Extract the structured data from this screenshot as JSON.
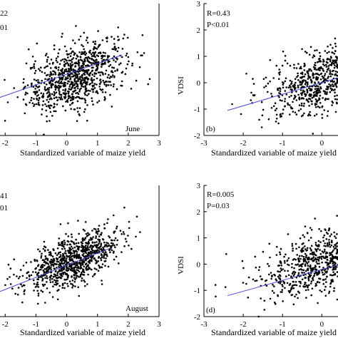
{
  "figure": {
    "description_free": true
  },
  "chart_data": [
    {
      "type": "scatter",
      "panel_id": "a",
      "panel_label": "",
      "month": "June",
      "stats": [
        "22",
        "01"
      ],
      "xlabel": "Standardized variable of maize yield",
      "ylabel": "",
      "xlim": [
        -2.4,
        3
      ],
      "ylim": [
        -2,
        3
      ],
      "xticks": [
        "-2",
        "-1",
        "0",
        "1",
        "2",
        "3"
      ],
      "yticks": [],
      "n_points": 900,
      "cloud": {
        "center": [
          0.3,
          0.25
        ],
        "spread": [
          0.8,
          0.6
        ]
      },
      "regression": {
        "x": [
          -2.4,
          1.8
        ],
        "y": [
          -0.65,
          1.05
        ]
      },
      "point_color": "#000000",
      "line_color": "#4a4ad8"
    },
    {
      "type": "scatter",
      "panel_id": "b",
      "panel_label": "(b)",
      "month": "",
      "stats": [
        "R=0.43",
        "P<0.01"
      ],
      "xlabel": "Standardized variable of maize yield",
      "ylabel": "VDSI",
      "xlim": [
        -3,
        1.7
      ],
      "ylim": [
        -2,
        3
      ],
      "xticks": [
        "-3",
        "-2",
        "-1",
        "0",
        "1"
      ],
      "yticks": [
        "-2",
        "-1",
        "0",
        "1",
        "2",
        "3"
      ],
      "n_points": 900,
      "cloud": {
        "center": [
          0.2,
          0.2
        ],
        "spread": [
          0.8,
          0.6
        ]
      },
      "regression": {
        "x": [
          -2.4,
          1.7
        ],
        "y": [
          -1.05,
          0.75
        ]
      },
      "point_color": "#000000",
      "line_color": "#4a4ad8"
    },
    {
      "type": "scatter",
      "panel_id": "c",
      "panel_label": "",
      "month": "August",
      "stats": [
        "41",
        "01"
      ],
      "xlabel": "Standardized variable of maize yield",
      "ylabel": "",
      "xlim": [
        -2.4,
        3
      ],
      "ylim": [
        -2,
        3
      ],
      "xticks": [
        "-2",
        "-1",
        "0",
        "1",
        "2",
        "3"
      ],
      "yticks": [],
      "n_points": 900,
      "cloud": {
        "center": [
          0.2,
          0.15
        ],
        "spread": [
          0.75,
          0.45
        ]
      },
      "regression": {
        "x": [
          -2.4,
          1.4
        ],
        "y": [
          -1.15,
          0.6
        ]
      },
      "point_color": "#000000",
      "line_color": "#4a4ad8"
    },
    {
      "type": "scatter",
      "panel_id": "d",
      "panel_label": "(d)",
      "month": "",
      "stats": [
        "R=0.005",
        "P=0.03"
      ],
      "xlabel": "Standardized variable of maize yield",
      "ylabel": "VDSI",
      "xlim": [
        -3,
        1.7
      ],
      "ylim": [
        -2,
        3
      ],
      "xticks": [
        "-3",
        "-2",
        "-1",
        "0",
        "1"
      ],
      "yticks": [
        "-2",
        "-1",
        "0",
        "1",
        "2",
        "3"
      ],
      "n_points": 800,
      "cloud": {
        "center": [
          0.0,
          0.1
        ],
        "spread": [
          0.85,
          0.6
        ]
      },
      "regression": {
        "x": [
          -2.4,
          1.7
        ],
        "y": [
          -1.2,
          0.5
        ]
      },
      "point_color": "#000000",
      "line_color": "#4a4ad8"
    }
  ]
}
